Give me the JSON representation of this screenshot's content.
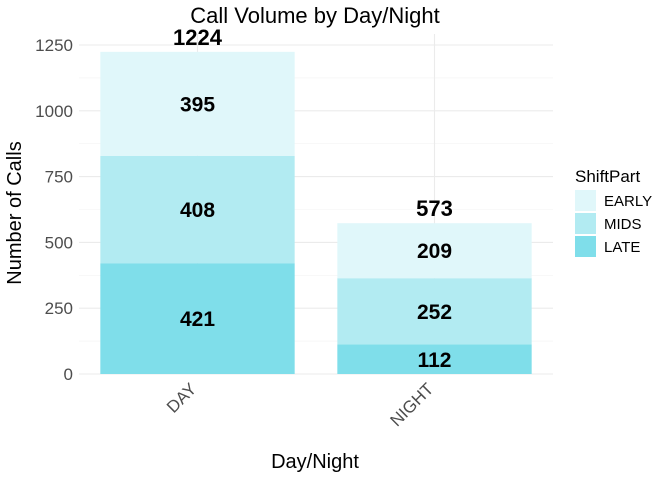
{
  "chart_data": {
    "type": "bar",
    "stacked": true,
    "title": "Call Volume by Day/Night",
    "xlabel": "Day/Night",
    "ylabel": "Number of Calls",
    "categories": [
      "DAY",
      "NIGHT"
    ],
    "series": [
      {
        "name": "LATE",
        "values": [
          421,
          112
        ],
        "color": "#7FDEEA"
      },
      {
        "name": "MIDS",
        "values": [
          408,
          252
        ],
        "color": "#B2EBF2"
      },
      {
        "name": "EARLY",
        "values": [
          395,
          209
        ],
        "color": "#E0F7FA"
      }
    ],
    "totals": [
      "1224",
      "573"
    ],
    "yticks": [
      0,
      250,
      500,
      750,
      1000,
      1250
    ],
    "ylim": [
      0,
      1250
    ],
    "grid": true,
    "legend": {
      "title": "ShiftPart",
      "placement": "right",
      "order": [
        "EARLY",
        "MIDS",
        "LATE"
      ]
    }
  }
}
